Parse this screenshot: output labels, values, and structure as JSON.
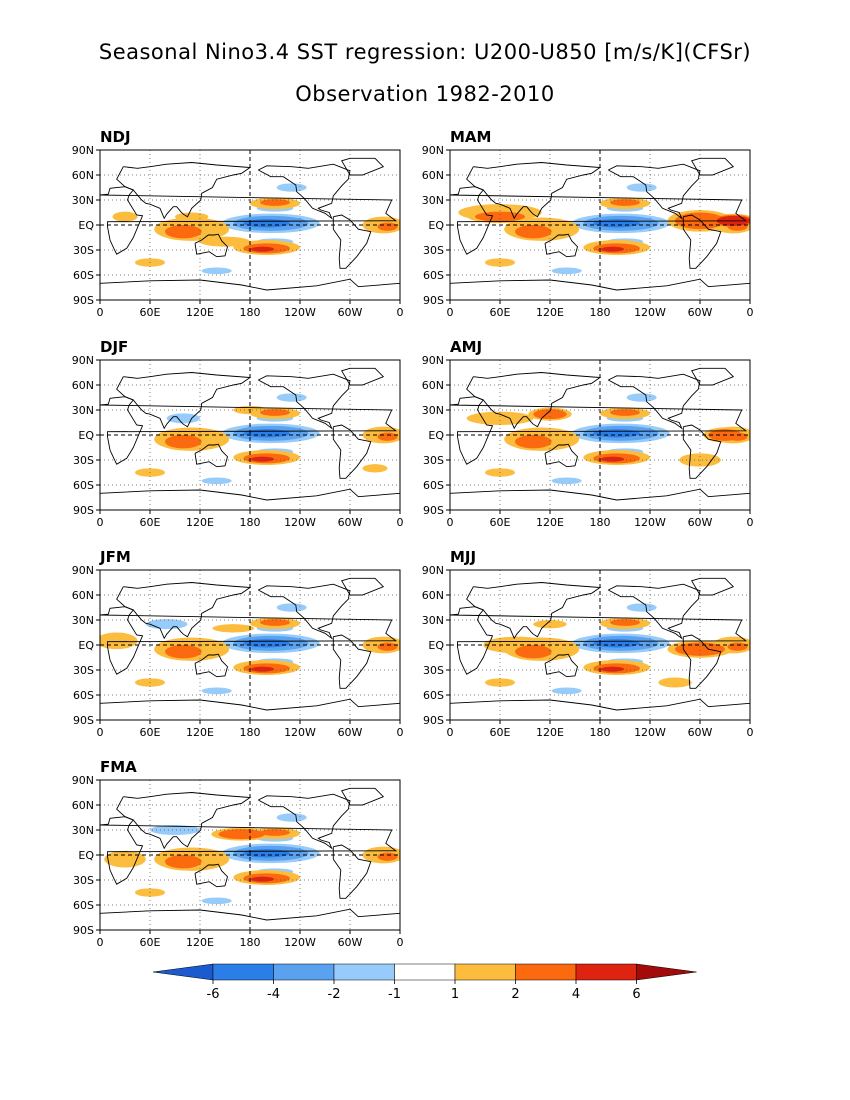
{
  "figure": {
    "title_line1": "Seasonal Nino3.4 SST regression: U200-U850 [m/s/K](CFSr)",
    "title_line2": "Observation 1982-2010"
  },
  "axes": {
    "lat_labels": [
      "90N",
      "60N",
      "30N",
      "EQ",
      "30S",
      "60S",
      "90S"
    ],
    "lon_labels": [
      "0",
      "60E",
      "120E",
      "180",
      "120W",
      "60W",
      "0"
    ]
  },
  "panels": [
    {
      "label": "NDJ",
      "variant": 0
    },
    {
      "label": "MAM",
      "variant": 4
    },
    {
      "label": "DJF",
      "variant": 1
    },
    {
      "label": "AMJ",
      "variant": 5
    },
    {
      "label": "JFM",
      "variant": 2
    },
    {
      "label": "MJJ",
      "variant": 6
    },
    {
      "label": "FMA",
      "variant": 3
    }
  ],
  "colorbar": {
    "labels": [
      "-6",
      "-4",
      "-2",
      "-1",
      "1",
      "2",
      "4",
      "6"
    ],
    "colors": [
      "#1e5ed6",
      "#2b7ee8",
      "#5aa2ef",
      "#97cbfa",
      "#ffffff",
      "#fcbd3e",
      "#fb6a0e",
      "#de2310",
      "#a30a0a"
    ],
    "end_colors": [
      "#1c5ad0",
      "#a30a0a"
    ]
  },
  "colors": {
    "neg_strong": "#2b7ee8",
    "neg_mid": "#5aa2ef",
    "neg_weak": "#97cbfa",
    "pos_weak": "#fcbd3e",
    "pos_mid": "#fb6a0e",
    "pos_strong": "#de2310"
  }
}
